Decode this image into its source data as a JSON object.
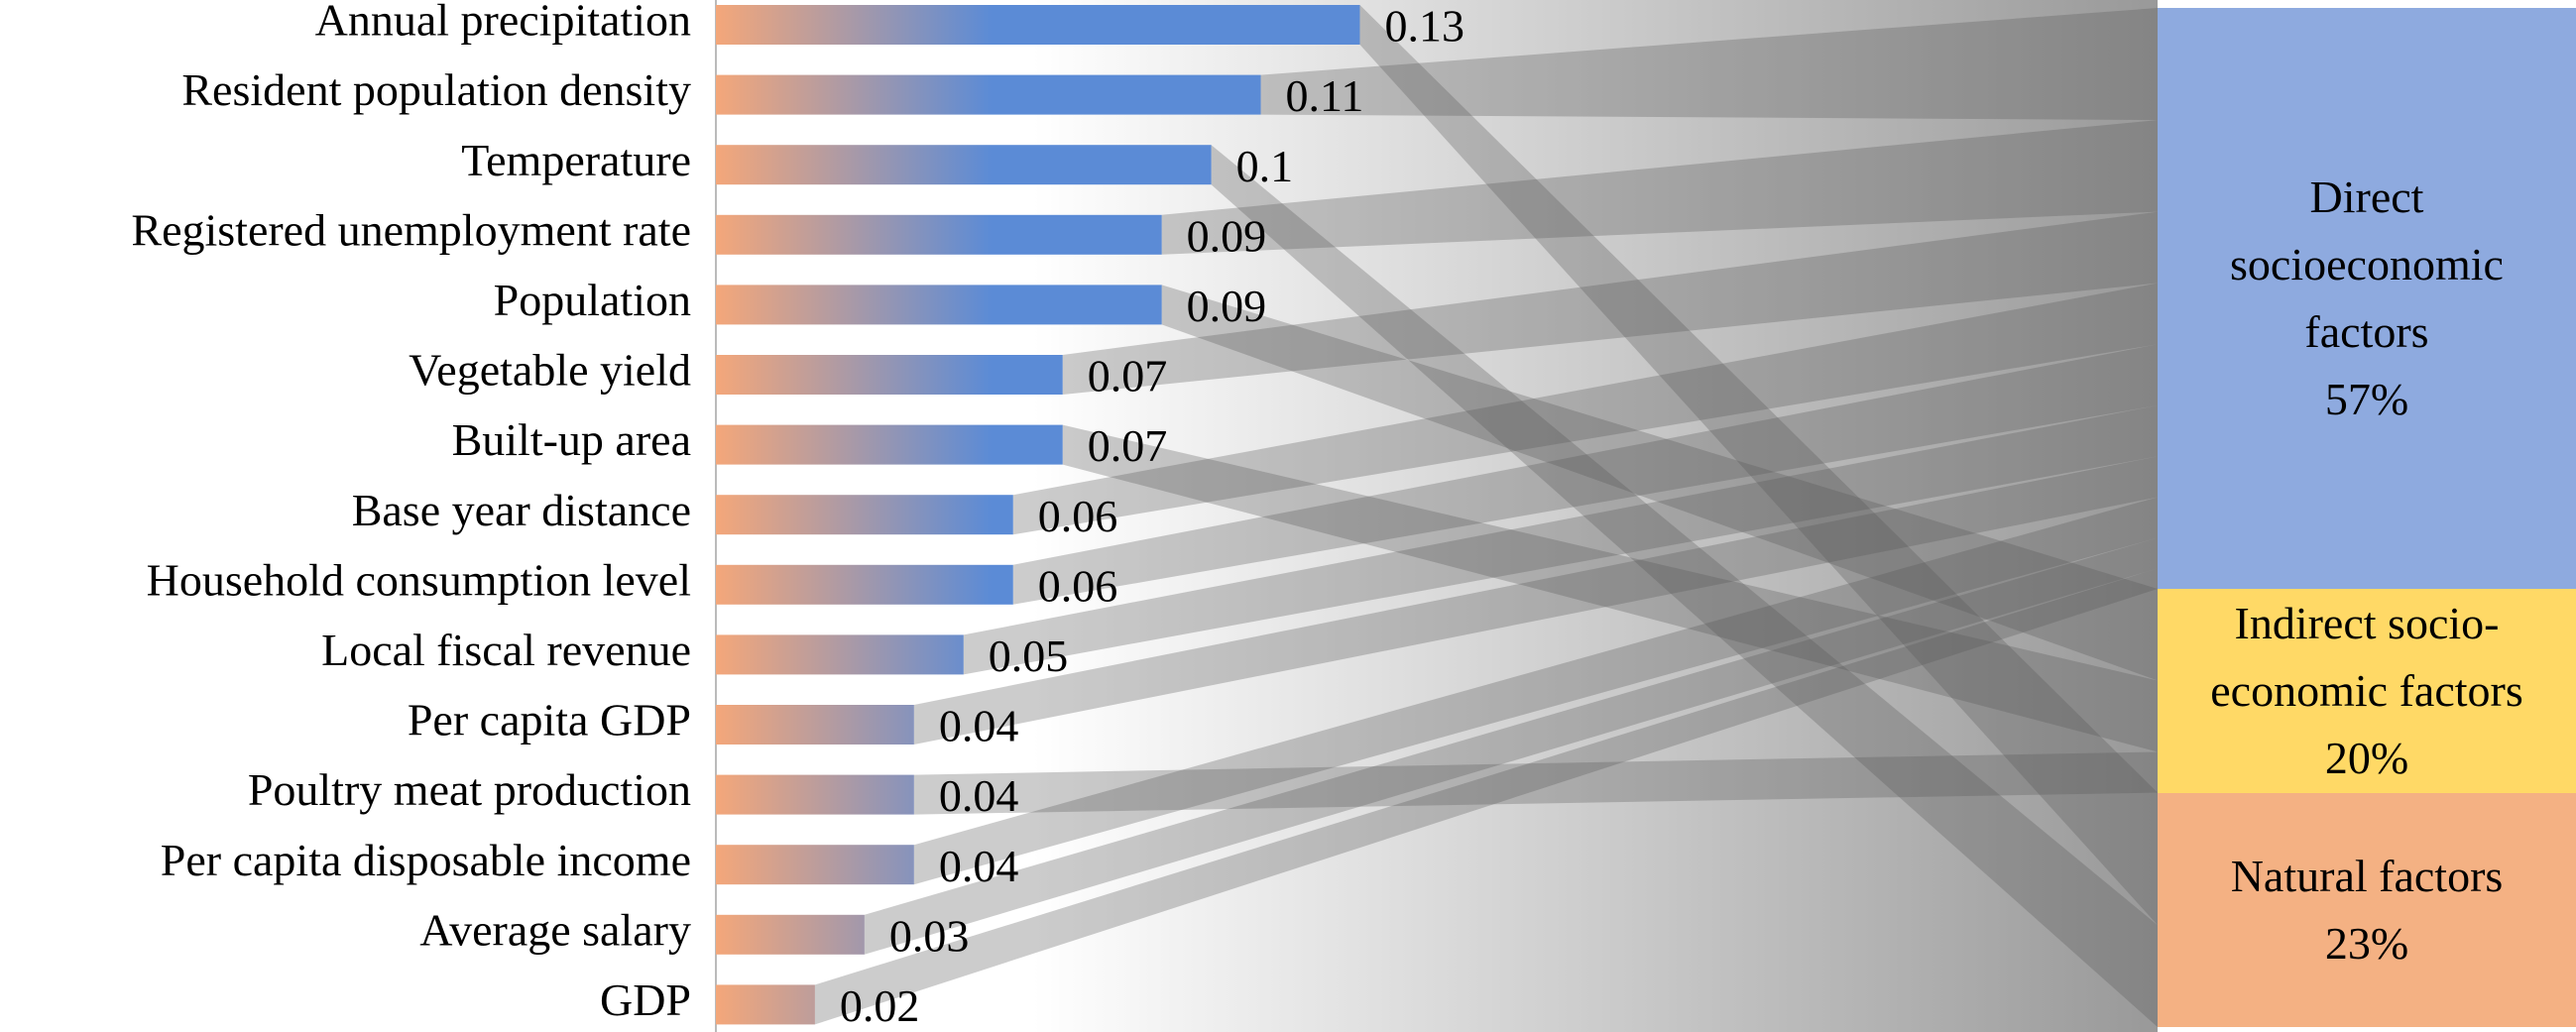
{
  "chart_data": {
    "type": "bar",
    "categories": [
      "Annual precipitation",
      "Resident population density",
      "Temperature",
      "Registered unemployment rate",
      "Population",
      "Vegetable yield",
      "Built-up area",
      "Base year distance",
      "Household consumption level",
      "Local fiscal revenue",
      "Per capita GDP",
      "Poultry meat production",
      "Per capita disposable income",
      "Average salary",
      "GDP"
    ],
    "values": [
      0.13,
      0.11,
      0.1,
      0.09,
      0.09,
      0.07,
      0.07,
      0.06,
      0.06,
      0.05,
      0.04,
      0.04,
      0.04,
      0.03,
      0.02
    ],
    "groups": [
      {
        "name": "Direct socioeconomic factors",
        "value": 57,
        "value_label": "57%",
        "color": "#8eaadf",
        "members": [
          "Resident population density",
          "Registered unemployment rate",
          "Vegetable yield",
          "Base year distance",
          "Household consumption level",
          "Local fiscal revenue",
          "Per capita GDP",
          "Per capita disposable income",
          "Average salary",
          "GDP"
        ]
      },
      {
        "name": "Indirect socio-economic factors",
        "value": 20,
        "value_label": "20%",
        "color": "#ffd966",
        "members": [
          "Population",
          "Built-up area",
          "Poultry meat production"
        ]
      },
      {
        "name": "Natural factors",
        "value": 23,
        "value_label": "23%",
        "color": "#f4b183",
        "members": [
          "Annual precipitation",
          "Temperature"
        ]
      }
    ]
  }
}
